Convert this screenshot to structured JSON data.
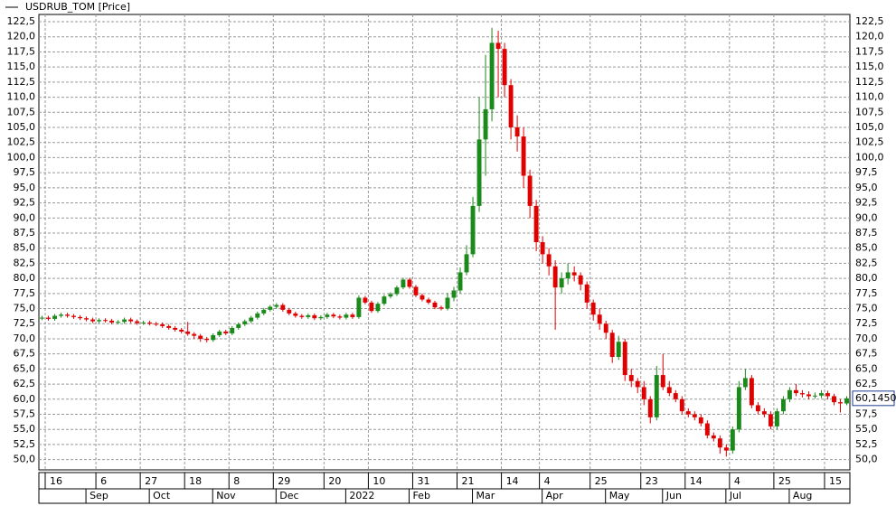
{
  "chart_data": {
    "type": "candlestick",
    "legend": "USDRUB_TOM [Price]",
    "up_color": "#1a8a1a",
    "down_color": "#e00000",
    "grid": true,
    "categories": [
      null,
      "16",
      null,
      null,
      null,
      null,
      null,
      null,
      null,
      "6",
      null,
      null,
      null,
      null,
      null,
      null,
      "27",
      null,
      null,
      null,
      null,
      null,
      null,
      "18",
      null,
      null,
      null,
      null,
      null,
      null,
      "8",
      null,
      null,
      null,
      null,
      null,
      null,
      "29",
      null,
      null,
      null,
      null,
      null,
      null,
      null,
      "20",
      null,
      null,
      null,
      null,
      null,
      null,
      "10",
      null,
      null,
      null,
      null,
      null,
      null,
      "31",
      null,
      null,
      null,
      null,
      null,
      null,
      "21",
      null,
      null,
      null,
      null,
      null,
      null,
      "14",
      null,
      null,
      null,
      null,
      null,
      "4",
      null,
      null,
      null,
      null,
      null,
      null,
      null,
      "25",
      null,
      null,
      null,
      null,
      null,
      null,
      null,
      "23",
      null,
      null,
      null,
      null,
      null,
      null,
      "14",
      null,
      null,
      null,
      null,
      null,
      null,
      "4",
      null,
      null,
      null,
      null,
      null,
      null,
      "25",
      null,
      null,
      null,
      null,
      null,
      null,
      null,
      "15",
      null,
      null,
      null
    ],
    "months": [
      null,
      null,
      null,
      null,
      null,
      null,
      null,
      null,
      "Sep",
      null,
      null,
      null,
      null,
      null,
      null,
      null,
      null,
      null,
      "Oct",
      null,
      null,
      null,
      null,
      null,
      null,
      null,
      null,
      null,
      "Nov",
      null,
      null,
      null,
      null,
      null,
      null,
      null,
      null,
      null,
      "Dec",
      null,
      null,
      null,
      null,
      null,
      null,
      null,
      null,
      null,
      null,
      "2022",
      null,
      null,
      null,
      null,
      null,
      null,
      null,
      null,
      null,
      "Feb",
      null,
      null,
      null,
      null,
      null,
      null,
      null,
      null,
      null,
      "Mar",
      null,
      null,
      null,
      null,
      null,
      null,
      null,
      null,
      null,
      null,
      "Apr",
      null,
      null,
      null,
      null,
      null,
      null,
      null,
      null,
      null,
      "May",
      null,
      null,
      null,
      null,
      null,
      null,
      null,
      null,
      "Jun",
      null,
      null,
      null,
      null,
      null,
      null,
      null,
      null,
      null,
      "Jul",
      null,
      null,
      null,
      null,
      null,
      null,
      null,
      null,
      null,
      "Aug",
      null,
      null,
      null,
      null,
      null,
      null,
      null,
      null
    ],
    "open": [
      73.4,
      73.5,
      73.3,
      73.8,
      74.0,
      73.8,
      73.6,
      73.4,
      73.2,
      72.9,
      73.1,
      73.0,
      72.7,
      72.8,
      73.2,
      72.9,
      72.6,
      72.7,
      72.5,
      72.4,
      72.1,
      71.8,
      71.5,
      71.2,
      70.8,
      70.5,
      70.0,
      69.8,
      70.6,
      71.2,
      70.9,
      71.8,
      72.4,
      72.9,
      73.5,
      74.2,
      74.8,
      75.3,
      75.6,
      74.8,
      74.2,
      73.8,
      73.6,
      73.9,
      73.4,
      73.6,
      74.0,
      73.7,
      73.5,
      74.0,
      73.6,
      76.8,
      76.0,
      74.6,
      75.8,
      77.0,
      77.4,
      78.5,
      79.8,
      78.6,
      77.2,
      76.5,
      76.0,
      75.2,
      75.0,
      76.8,
      78.0,
      81.0,
      84.0,
      92.0,
      103.0,
      108.0,
      119.0,
      118.0,
      112.0,
      105.0,
      103.5,
      97.0,
      92.0,
      86.0,
      84.0,
      82.0,
      78.5,
      80.0,
      81.0,
      80.5,
      79.0,
      76.0,
      74.0,
      72.5,
      71.0,
      67.0,
      69.5,
      64.0,
      63.0,
      62.0,
      60.0,
      57.0,
      64.0,
      62.0,
      61.0,
      60.0,
      58.0,
      57.5,
      57.0,
      56.0,
      54.0,
      53.5,
      52.0,
      51.5,
      55.0,
      62.0,
      63.5,
      59.0,
      58.0,
      57.5,
      55.5,
      58.0,
      60.0,
      61.5,
      61.0,
      60.8,
      60.5,
      60.6,
      61.0,
      60.5,
      59.5,
      59.3
    ],
    "high": [
      73.8,
      73.8,
      74.1,
      74.3,
      74.3,
      74.1,
      73.9,
      73.7,
      73.5,
      73.4,
      73.4,
      73.3,
      73.1,
      73.5,
      73.5,
      73.2,
      73.0,
      73.0,
      72.8,
      72.7,
      72.4,
      72.1,
      71.8,
      72.8,
      71.1,
      70.8,
      70.3,
      70.9,
      71.5,
      71.5,
      72.1,
      72.7,
      73.2,
      73.8,
      74.5,
      75.1,
      75.6,
      75.9,
      75.9,
      75.1,
      74.5,
      74.1,
      74.2,
      74.2,
      73.9,
      74.3,
      74.3,
      74.0,
      74.3,
      74.3,
      77.2,
      77.1,
      76.3,
      76.1,
      77.3,
      77.7,
      78.8,
      80.1,
      80.1,
      78.9,
      77.5,
      76.8,
      76.3,
      75.5,
      77.6,
      78.6,
      81.8,
      85.5,
      93.5,
      110.0,
      117.0,
      121.5,
      121.0,
      119.0,
      113.0,
      107.0,
      105.0,
      98.0,
      93.0,
      87.0,
      85.0,
      83.0,
      81.0,
      82.5,
      82.0,
      81.0,
      79.5,
      76.5,
      75.0,
      73.0,
      71.5,
      70.5,
      70.0,
      65.0,
      63.5,
      63.0,
      60.5,
      65.5,
      67.5,
      63.0,
      61.5,
      60.5,
      58.5,
      58.0,
      57.5,
      56.5,
      54.5,
      54.0,
      52.5,
      55.5,
      63.0,
      65.0,
      64.0,
      59.5,
      58.5,
      58.0,
      58.5,
      60.5,
      62.0,
      62.5,
      61.5,
      61.3,
      61.1,
      61.5,
      61.4,
      60.9,
      60.0,
      60.5
    ],
    "low": [
      73.1,
      73.0,
      73.0,
      73.5,
      73.5,
      73.3,
      73.1,
      72.9,
      72.6,
      72.6,
      72.7,
      72.4,
      72.4,
      72.5,
      72.6,
      72.3,
      72.3,
      72.2,
      72.1,
      71.8,
      71.5,
      71.2,
      70.9,
      70.5,
      70.0,
      69.5,
      69.4,
      69.5,
      70.3,
      70.6,
      70.6,
      71.5,
      72.1,
      72.6,
      73.2,
      73.9,
      74.5,
      75.0,
      74.5,
      73.9,
      73.5,
      73.3,
      73.3,
      73.1,
      73.1,
      73.3,
      73.4,
      73.2,
      73.2,
      73.3,
      73.3,
      75.7,
      74.3,
      74.3,
      75.5,
      76.7,
      77.1,
      78.2,
      78.3,
      76.9,
      76.2,
      75.7,
      74.9,
      74.7,
      74.7,
      76.2,
      77.5,
      80.5,
      83.5,
      91.0,
      97.0,
      106.0,
      110.0,
      110.0,
      103.0,
      101.0,
      95.0,
      90.0,
      84.5,
      82.5,
      80.5,
      71.5,
      77.5,
      79.0,
      79.5,
      78.0,
      75.0,
      73.0,
      71.5,
      70.0,
      66.0,
      66.5,
      63.0,
      62.0,
      61.0,
      59.0,
      56.0,
      56.5,
      61.5,
      60.5,
      59.5,
      57.5,
      57.0,
      56.5,
      55.5,
      53.5,
      53.0,
      51.0,
      50.5,
      51.0,
      54.5,
      61.5,
      58.5,
      57.5,
      57.0,
      55.0,
      55.0,
      57.5,
      59.5,
      60.5,
      60.3,
      60.0,
      60.1,
      60.2,
      60.0,
      59.0,
      57.8,
      59.0
    ],
    "close": [
      73.5,
      73.3,
      73.8,
      74.0,
      73.8,
      73.6,
      73.4,
      73.2,
      72.9,
      73.1,
      73.0,
      72.7,
      72.8,
      73.2,
      72.9,
      72.6,
      72.7,
      72.5,
      72.4,
      72.1,
      71.8,
      71.5,
      71.2,
      70.8,
      70.5,
      70.0,
      69.8,
      70.6,
      71.2,
      70.9,
      71.8,
      72.4,
      72.9,
      73.5,
      74.2,
      74.8,
      75.3,
      75.6,
      74.8,
      74.2,
      73.8,
      73.6,
      73.9,
      73.4,
      73.6,
      74.0,
      73.7,
      73.5,
      74.0,
      73.6,
      76.8,
      76.0,
      74.6,
      75.8,
      77.0,
      77.4,
      78.5,
      79.8,
      78.6,
      77.2,
      76.5,
      76.0,
      75.2,
      75.0,
      76.8,
      78.0,
      81.0,
      84.0,
      92.0,
      103.0,
      108.0,
      119.0,
      118.0,
      112.0,
      105.0,
      103.5,
      97.0,
      92.0,
      86.0,
      84.0,
      82.0,
      78.5,
      80.0,
      81.0,
      80.5,
      79.0,
      76.0,
      74.0,
      72.5,
      71.0,
      67.0,
      69.5,
      64.0,
      63.0,
      62.0,
      60.0,
      57.0,
      64.0,
      62.0,
      61.0,
      60.0,
      58.0,
      57.5,
      57.0,
      56.0,
      54.0,
      53.5,
      52.0,
      51.5,
      55.0,
      62.0,
      63.5,
      59.0,
      58.0,
      57.5,
      55.5,
      58.0,
      60.0,
      61.5,
      61.0,
      60.8,
      60.5,
      60.6,
      61.0,
      60.5,
      59.5,
      59.3,
      60.145
    ],
    "last_price": {
      "value": 60.145,
      "label": "60,1450"
    },
    "ylim": [
      48.3,
      123.7
    ],
    "yticks": [
      {
        "value": 50,
        "label": "50,0"
      },
      {
        "value": 52.5,
        "label": "52,5"
      },
      {
        "value": 55,
        "label": "55,0"
      },
      {
        "value": 57.5,
        "label": "57,5"
      },
      {
        "value": 60,
        "label": "60,0"
      },
      {
        "value": 62.5,
        "label": "62,5"
      },
      {
        "value": 65,
        "label": "65,0"
      },
      {
        "value": 67.5,
        "label": "67,5"
      },
      {
        "value": 70,
        "label": "70,0"
      },
      {
        "value": 72.5,
        "label": "72,5"
      },
      {
        "value": 75,
        "label": "75,0"
      },
      {
        "value": 77.5,
        "label": "77,5"
      },
      {
        "value": 80,
        "label": "80,0"
      },
      {
        "value": 82.5,
        "label": "82,5"
      },
      {
        "value": 85,
        "label": "85,0"
      },
      {
        "value": 87.5,
        "label": "87,5"
      },
      {
        "value": 90,
        "label": "90,0"
      },
      {
        "value": 92.5,
        "label": "92,5"
      },
      {
        "value": 95,
        "label": "95,0"
      },
      {
        "value": 97.5,
        "label": "97,5"
      },
      {
        "value": 100,
        "label": "100,0"
      },
      {
        "value": 102.5,
        "label": "102,5"
      },
      {
        "value": 105,
        "label": "105,0"
      },
      {
        "value": 107.5,
        "label": "107,5"
      },
      {
        "value": 110,
        "label": "110,0"
      },
      {
        "value": 112.5,
        "label": "112,5"
      },
      {
        "value": 115,
        "label": "115,0"
      },
      {
        "value": 117.5,
        "label": "117,5"
      },
      {
        "value": 120,
        "label": "120,0"
      },
      {
        "value": 122.5,
        "label": "122,5"
      }
    ]
  }
}
